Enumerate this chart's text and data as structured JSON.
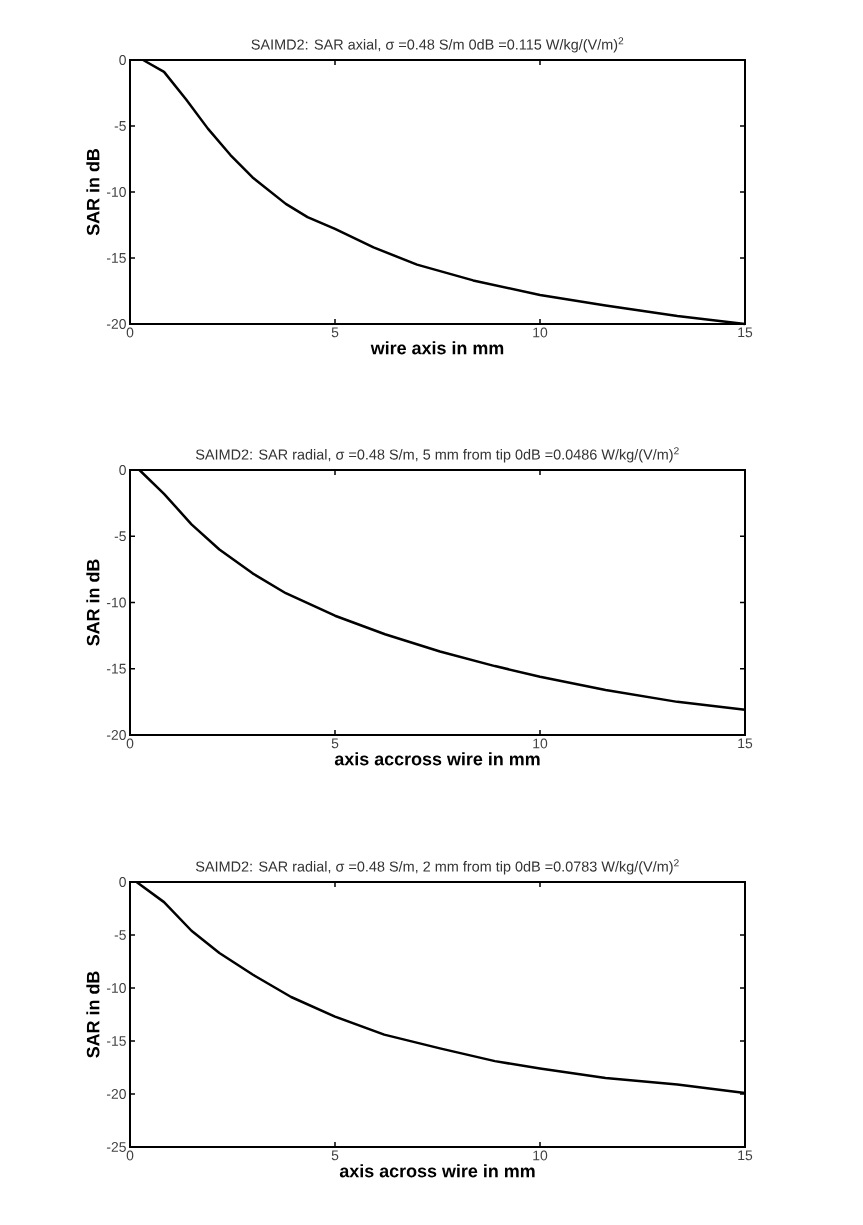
{
  "chart_data": [
    {
      "type": "line",
      "title": "SAIMD2: SAR axial, σ =0.48 S/m  0dB =0.115 W/kg/(V/m)$^{2}$",
      "xlabel": "wire axis in mm",
      "ylabel": "SAR in dB",
      "xlim": [
        0,
        15
      ],
      "ylim": [
        -20,
        0
      ],
      "xticks": [
        0,
        5,
        10,
        15
      ],
      "yticks": [
        -20,
        -15,
        -10,
        -5,
        0
      ],
      "color": "#000000",
      "x": [
        0.32,
        0.83,
        1.37,
        1.9,
        2.45,
        2.99,
        3.8,
        4.33,
        5,
        5.94,
        7.0,
        8.37,
        10,
        11.6,
        13.35,
        15
      ],
      "values": [
        0,
        -0.9,
        -3,
        -5.2,
        -7.2,
        -8.9,
        -10.9,
        -11.9,
        -12.8,
        -14.2,
        -15.5,
        -16.7,
        -17.8,
        -18.6,
        -19.4,
        -20
      ]
    },
    {
      "type": "line",
      "title": "SAIMD2: SAR radial, σ =0.48 S/m, 5 mm from tip  0dB =0.0486 W/kg/(V/m)$^{2}$",
      "xlabel": "axis accross wire in mm",
      "ylabel": "SAR in dB",
      "xlim": [
        0,
        15
      ],
      "ylim": [
        -20,
        0
      ],
      "xticks": [
        0,
        5,
        10,
        15
      ],
      "yticks": [
        -20,
        -15,
        -10,
        -5,
        0
      ],
      "color": "#000000",
      "x": [
        0.23,
        0.83,
        1.5,
        2.18,
        2.99,
        3.8,
        5,
        6.22,
        7.56,
        8.9,
        10,
        11.6,
        13.35,
        15
      ],
      "values": [
        0,
        -1.8,
        -4.1,
        -6.0,
        -7.8,
        -9.3,
        -11.0,
        -12.4,
        -13.7,
        -14.8,
        -15.6,
        -16.6,
        -17.5,
        -18.1
      ]
    },
    {
      "type": "line",
      "title": "SAIMD2: SAR radial, σ =0.48 S/m, 2 mm from tip  0dB =0.0783 W/kg/(V/m)$^{2}$",
      "xlabel": "axis across wire in mm",
      "ylabel": "SAR in dB",
      "xlim": [
        0,
        15
      ],
      "ylim": [
        -25,
        0
      ],
      "xticks": [
        0,
        5,
        10,
        15
      ],
      "yticks": [
        -25,
        -20,
        -15,
        -10,
        -5,
        0
      ],
      "color": "#000000",
      "x": [
        0.16,
        0.83,
        1.5,
        2.18,
        3,
        3.93,
        5,
        6.2,
        7.56,
        8.9,
        10,
        11.6,
        13.35,
        15
      ],
      "values": [
        0,
        -1.9,
        -4.6,
        -6.7,
        -8.75,
        -10.85,
        -12.7,
        -14.4,
        -15.7,
        -16.9,
        -17.6,
        -18.5,
        -19.1,
        -19.9
      ]
    }
  ]
}
